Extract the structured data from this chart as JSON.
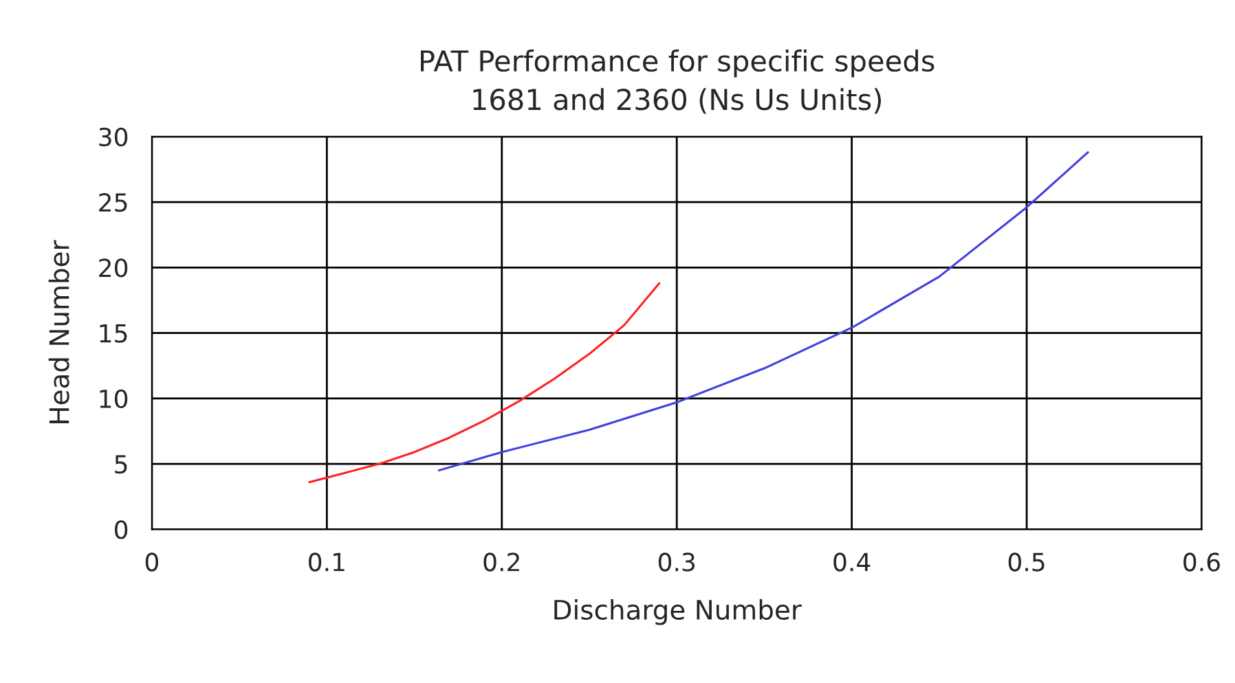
{
  "chart_data": {
    "type": "line",
    "title": "PAT Performance for specific speeds\n1681 and 2360 (Ns Us Units)",
    "xlabel": "Discharge Number",
    "ylabel": "Head Number",
    "xlim": [
      0,
      0.6
    ],
    "xticks": [
      0,
      0.1,
      0.2,
      0.3,
      0.4,
      0.5,
      0.6
    ],
    "ylim": [
      0,
      30
    ],
    "yticks": [
      0,
      5,
      10,
      15,
      20,
      25,
      30
    ],
    "grid": true,
    "series": [
      {
        "color": "#ff2020",
        "x": [
          0.09,
          0.11,
          0.13,
          0.15,
          0.17,
          0.19,
          0.21,
          0.23,
          0.25,
          0.27,
          0.29
        ],
        "values": [
          3.6,
          4.3,
          5.0,
          5.9,
          7.0,
          8.3,
          9.8,
          11.5,
          13.4,
          15.6,
          18.8
        ]
      },
      {
        "color": "#4040e0",
        "x": [
          0.164,
          0.2,
          0.25,
          0.3,
          0.35,
          0.4,
          0.45,
          0.5,
          0.535
        ],
        "values": [
          4.5,
          5.9,
          7.6,
          9.7,
          12.3,
          15.4,
          19.3,
          24.6,
          28.8
        ]
      }
    ]
  }
}
